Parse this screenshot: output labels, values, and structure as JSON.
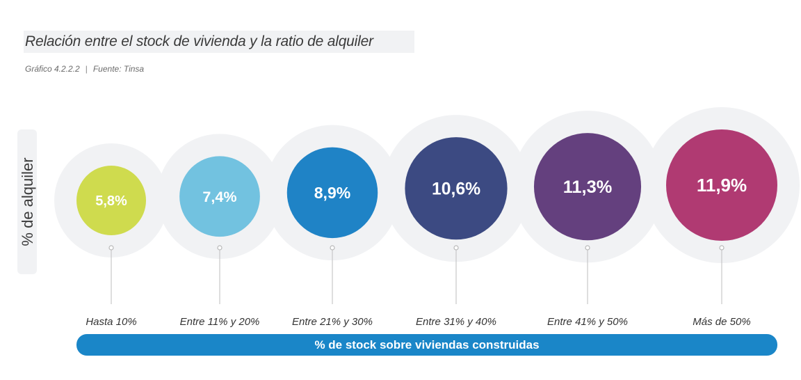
{
  "chart_data": {
    "type": "bubble",
    "title": "Relación entre el stock de vivienda y la ratio de alquiler",
    "subtitle": "Gráfico 4.2.2.2",
    "source": "Fuente: Tinsa",
    "ylabel": "% de alquiler",
    "xlabel": "% de stock sobre viviendas construidas",
    "categories": [
      "Hasta 10%",
      "Entre 11% y 20%",
      "Entre 21% y 30%",
      "Entre 31% y 40%",
      "Entre 41% y 50%",
      "Más de 50%"
    ],
    "values": [
      5.8,
      7.4,
      8.9,
      10.6,
      11.3,
      11.9
    ],
    "value_labels": [
      "5,8%",
      "7,4%",
      "8,9%",
      "10,6%",
      "11,3%",
      "11,9%"
    ],
    "colors": [
      "#cfdb4e",
      "#72c2e0",
      "#1f83c6",
      "#3c4a82",
      "#64407e",
      "#b03a72"
    ],
    "halo_color": "#f1f2f4",
    "axis_bar_color": "#1a86c8"
  }
}
